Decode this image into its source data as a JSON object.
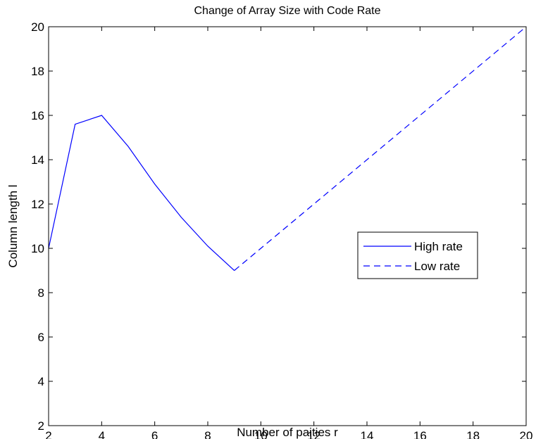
{
  "chart_data": {
    "type": "line",
    "title": "Change of Array Size with Code Rate",
    "xlabel": "Number of paities r",
    "ylabel": "Column length l",
    "xlim": [
      2,
      20
    ],
    "ylim": [
      2,
      20
    ],
    "xticks": [
      2,
      4,
      6,
      8,
      10,
      12,
      14,
      16,
      18,
      20
    ],
    "yticks": [
      2,
      4,
      6,
      8,
      10,
      12,
      14,
      16,
      18,
      20
    ],
    "grid": false,
    "legend_position": "right",
    "series": [
      {
        "name": "High rate",
        "style": "solid",
        "color": "#0000ff",
        "x": [
          2,
          3,
          4,
          5,
          6,
          7,
          8,
          9
        ],
        "y": [
          10,
          15.6,
          16,
          14.6,
          12.9,
          11.4,
          10.1,
          9
        ]
      },
      {
        "name": "Low rate",
        "style": "dashed",
        "color": "#0000ff",
        "x": [
          9,
          20
        ],
        "y": [
          9,
          20
        ]
      }
    ]
  }
}
